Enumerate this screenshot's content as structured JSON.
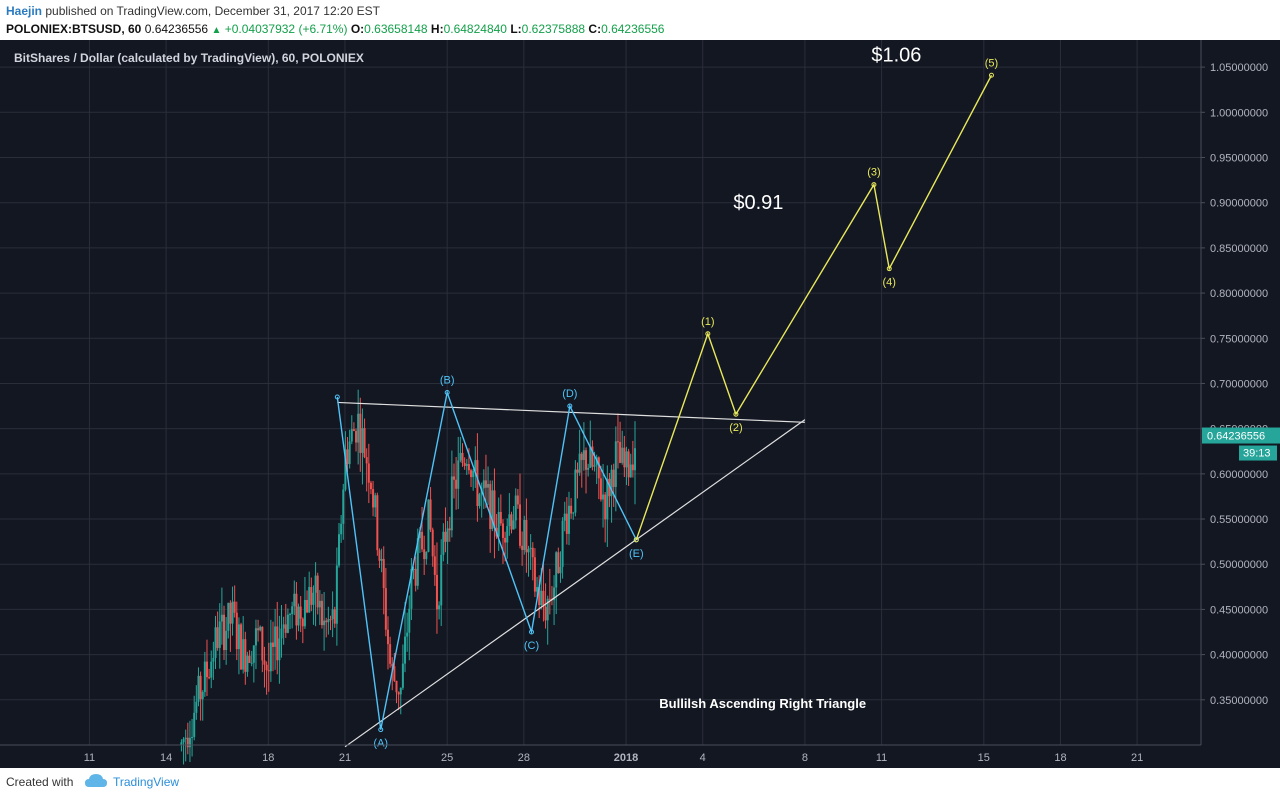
{
  "header": {
    "author": "Haejin",
    "published": "published on TradingView.com, December 31, 2017 12:20 EST",
    "symbol": "POLONIEX:BTSUSD, 60",
    "last": "0.64236556",
    "change": "+0.04037932 (+6.71%)",
    "open_label": "O:",
    "open": "0.63658148",
    "high_label": "H:",
    "high": "0.64824840",
    "low_label": "L:",
    "low": "0.62375888",
    "close_label": "C:",
    "close": "0.64236556"
  },
  "footer": {
    "created_with": "Created with",
    "brand": "TradingView"
  },
  "colors": {
    "background": "#131722",
    "grid": "#2a2e39",
    "up": "#26a69a",
    "down": "#ef5350",
    "cyan": "#4fc3f7",
    "yellow": "#e8e85a",
    "white_line": "#e0e0e0",
    "price_tag": "#26a69a"
  },
  "chart_data": {
    "type": "candlestick",
    "title": "BitShares / Dollar (calculated by TradingView), 60, POLONIEX",
    "x_unit": "days since Dec 11, 2017",
    "x_ticks": [
      {
        "x": 0,
        "label": "11"
      },
      {
        "x": 3,
        "label": "14"
      },
      {
        "x": 7,
        "label": "18"
      },
      {
        "x": 10,
        "label": "21"
      },
      {
        "x": 14,
        "label": "25"
      },
      {
        "x": 17,
        "label": "28"
      },
      {
        "x": 21,
        "label": "2018"
      },
      {
        "x": 24,
        "label": "4"
      },
      {
        "x": 28,
        "label": "8"
      },
      {
        "x": 31,
        "label": "11"
      },
      {
        "x": 35,
        "label": "15"
      },
      {
        "x": 38,
        "label": "18"
      },
      {
        "x": 41,
        "label": "21"
      }
    ],
    "y_ticks": [
      {
        "y": 0.35,
        "label": "0.35000000"
      },
      {
        "y": 0.4,
        "label": "0.40000000"
      },
      {
        "y": 0.45,
        "label": "0.45000000"
      },
      {
        "y": 0.5,
        "label": "0.50000000"
      },
      {
        "y": 0.55,
        "label": "0.55000000"
      },
      {
        "y": 0.6,
        "label": "0.60000000"
      },
      {
        "y": 0.65,
        "label": "0.65000000"
      },
      {
        "y": 0.7,
        "label": "0.70000000"
      },
      {
        "y": 0.75,
        "label": "0.75000000"
      },
      {
        "y": 0.8,
        "label": "0.80000000"
      },
      {
        "y": 0.85,
        "label": "0.85000000"
      },
      {
        "y": 0.9,
        "label": "0.90000000"
      },
      {
        "y": 0.95,
        "label": "0.95000000"
      },
      {
        "y": 1.0,
        "label": "1.00000000"
      },
      {
        "y": 1.05,
        "label": "1.05000000"
      }
    ],
    "ylim": [
      0.3,
      1.08
    ],
    "xlim": [
      -3.5,
      43.5
    ],
    "price_path": [
      [
        3.6,
        0.3
      ],
      [
        4.0,
        0.33
      ],
      [
        4.6,
        0.38
      ],
      [
        5.0,
        0.42
      ],
      [
        5.6,
        0.44
      ],
      [
        6.0,
        0.4
      ],
      [
        6.6,
        0.42
      ],
      [
        7.0,
        0.38
      ],
      [
        7.6,
        0.44
      ],
      [
        8.2,
        0.45
      ],
      [
        8.8,
        0.47
      ],
      [
        9.2,
        0.43
      ],
      [
        9.6,
        0.44
      ],
      [
        10.0,
        0.62
      ],
      [
        10.5,
        0.66
      ],
      [
        11.0,
        0.6
      ],
      [
        11.4,
        0.5
      ],
      [
        11.8,
        0.38
      ],
      [
        12.2,
        0.36
      ],
      [
        12.6,
        0.48
      ],
      [
        13.0,
        0.52
      ],
      [
        13.3,
        0.55
      ],
      [
        13.6,
        0.46
      ],
      [
        14.0,
        0.55
      ],
      [
        14.4,
        0.6
      ],
      [
        14.8,
        0.63
      ],
      [
        15.2,
        0.58
      ],
      [
        15.6,
        0.57
      ],
      [
        16.0,
        0.54
      ],
      [
        16.6,
        0.56
      ],
      [
        17.0,
        0.53
      ],
      [
        17.4,
        0.48
      ],
      [
        17.8,
        0.45
      ],
      [
        18.2,
        0.48
      ],
      [
        18.6,
        0.55
      ],
      [
        19.0,
        0.58
      ],
      [
        19.4,
        0.62
      ],
      [
        19.8,
        0.6
      ],
      [
        20.2,
        0.57
      ],
      [
        20.6,
        0.62
      ],
      [
        21.0,
        0.6
      ],
      [
        21.4,
        0.64
      ]
    ],
    "resistance_line": {
      "from": {
        "x": 9.7,
        "y": 0.679
      },
      "to": {
        "x": 28.0,
        "y": 0.657
      }
    },
    "support_line": {
      "from": {
        "x": 10.0,
        "y": 0.298
      },
      "to": {
        "x": 28.0,
        "y": 0.66
      }
    },
    "abcde_wave": [
      {
        "x": 9.7,
        "y": 0.685,
        "label": ""
      },
      {
        "x": 11.4,
        "y": 0.317,
        "label": "(A)"
      },
      {
        "x": 14.0,
        "y": 0.69,
        "label": "(B)"
      },
      {
        "x": 17.3,
        "y": 0.425,
        "label": "(C)"
      },
      {
        "x": 18.8,
        "y": 0.675,
        "label": "(D)"
      },
      {
        "x": 21.4,
        "y": 0.527,
        "label": "(E)"
      }
    ],
    "impulse_wave": [
      {
        "x": 21.4,
        "y": 0.527,
        "label": ""
      },
      {
        "x": 24.2,
        "y": 0.755,
        "label": "(1)"
      },
      {
        "x": 25.3,
        "y": 0.666,
        "label": "(2)"
      },
      {
        "x": 30.7,
        "y": 0.92,
        "label": "(3)"
      },
      {
        "x": 31.3,
        "y": 0.827,
        "label": "(4)"
      },
      {
        "x": 35.3,
        "y": 1.041,
        "label": "(5)"
      }
    ],
    "annotations": [
      {
        "x": 30.6,
        "y": 1.056,
        "text": "$1.06"
      },
      {
        "x": 25.2,
        "y": 0.893,
        "text": "$0.91"
      },
      {
        "x": 22.3,
        "y": 0.341,
        "text": "Bullilsh Ascending Right Triangle"
      }
    ],
    "price_tag": {
      "y": 0.6424,
      "value": "0.64236556",
      "countdown": "39:13"
    }
  }
}
